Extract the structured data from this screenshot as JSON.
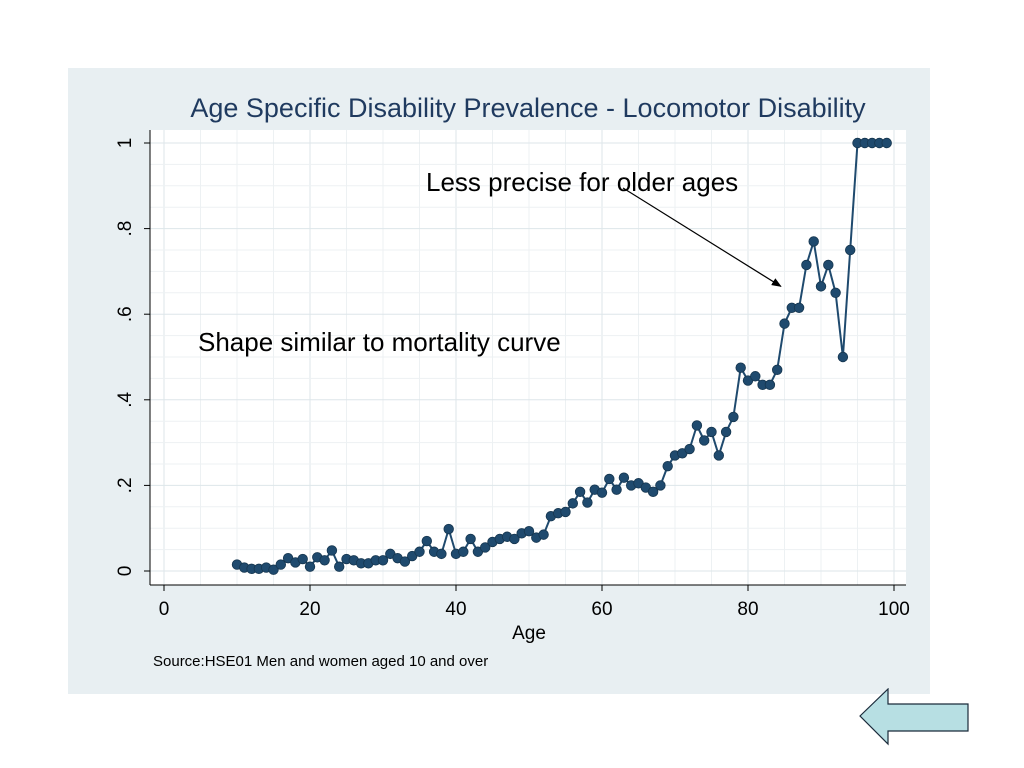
{
  "chart_data": {
    "type": "scatter",
    "connected": true,
    "title": "Age Specific Disability Prevalence - Locomotor Disability",
    "xlabel": "Age",
    "ylabel": "",
    "xlim": [
      0,
      100
    ],
    "ylim": [
      0,
      1
    ],
    "xticks": [
      0,
      20,
      40,
      60,
      80,
      100
    ],
    "yticks": [
      0,
      0.2,
      0.4,
      0.6,
      0.8,
      1
    ],
    "xtick_labels": [
      "0",
      "20",
      "40",
      "60",
      "80",
      "100"
    ],
    "ytick_labels": [
      "0",
      ".2",
      ".4",
      ".6",
      ".8",
      "1"
    ],
    "grid": true,
    "series": [
      {
        "color": "#1f4a6e",
        "points": [
          [
            10,
            0.015
          ],
          [
            11,
            0.008
          ],
          [
            12,
            0.005
          ],
          [
            13,
            0.005
          ],
          [
            14,
            0.008
          ],
          [
            15,
            0.003
          ],
          [
            16,
            0.015
          ],
          [
            17,
            0.03
          ],
          [
            18,
            0.02
          ],
          [
            19,
            0.028
          ],
          [
            20,
            0.01
          ],
          [
            21,
            0.032
          ],
          [
            22,
            0.025
          ],
          [
            23,
            0.048
          ],
          [
            24,
            0.01
          ],
          [
            25,
            0.028
          ],
          [
            26,
            0.025
          ],
          [
            27,
            0.018
          ],
          [
            28,
            0.018
          ],
          [
            29,
            0.025
          ],
          [
            30,
            0.025
          ],
          [
            31,
            0.04
          ],
          [
            32,
            0.03
          ],
          [
            33,
            0.022
          ],
          [
            34,
            0.035
          ],
          [
            35,
            0.045
          ],
          [
            36,
            0.07
          ],
          [
            37,
            0.045
          ],
          [
            38,
            0.04
          ],
          [
            39,
            0.098
          ],
          [
            40,
            0.04
          ],
          [
            41,
            0.045
          ],
          [
            42,
            0.075
          ],
          [
            43,
            0.045
          ],
          [
            44,
            0.055
          ],
          [
            45,
            0.068
          ],
          [
            46,
            0.075
          ],
          [
            47,
            0.08
          ],
          [
            48,
            0.075
          ],
          [
            49,
            0.088
          ],
          [
            50,
            0.093
          ],
          [
            51,
            0.078
          ],
          [
            52,
            0.085
          ],
          [
            53,
            0.128
          ],
          [
            54,
            0.135
          ],
          [
            55,
            0.138
          ],
          [
            56,
            0.158
          ],
          [
            57,
            0.185
          ],
          [
            58,
            0.16
          ],
          [
            59,
            0.19
          ],
          [
            60,
            0.183
          ],
          [
            61,
            0.215
          ],
          [
            62,
            0.19
          ],
          [
            63,
            0.218
          ],
          [
            64,
            0.2
          ],
          [
            65,
            0.205
          ],
          [
            66,
            0.195
          ],
          [
            67,
            0.185
          ],
          [
            68,
            0.2
          ],
          [
            69,
            0.245
          ],
          [
            70,
            0.27
          ],
          [
            71,
            0.275
          ],
          [
            72,
            0.285
          ],
          [
            73,
            0.34
          ],
          [
            74,
            0.305
          ],
          [
            75,
            0.325
          ],
          [
            76,
            0.27
          ],
          [
            77,
            0.325
          ],
          [
            78,
            0.36
          ],
          [
            79,
            0.475
          ],
          [
            80,
            0.445
          ],
          [
            81,
            0.455
          ],
          [
            82,
            0.435
          ],
          [
            83,
            0.435
          ],
          [
            84,
            0.47
          ],
          [
            85,
            0.578
          ],
          [
            86,
            0.615
          ],
          [
            87,
            0.615
          ],
          [
            88,
            0.715
          ],
          [
            89,
            0.77
          ],
          [
            90,
            0.665
          ],
          [
            91,
            0.715
          ],
          [
            92,
            0.65
          ],
          [
            93,
            0.5
          ],
          [
            94,
            0.75
          ],
          [
            95,
            1.0
          ],
          [
            96,
            1.0
          ],
          [
            97,
            1.0
          ],
          [
            98,
            1.0
          ],
          [
            99,
            1.0
          ]
        ]
      }
    ],
    "annotations": [
      {
        "text": "Less precise for older ages",
        "arrow_to": [
          84.5,
          0.665
        ]
      },
      {
        "text": "Shape similar to mortality curve"
      }
    ],
    "note": "Source:HSE01 Men and women aged 10 and over"
  },
  "nav": {
    "back_icon": "left-arrow-icon",
    "back_color": "#b7dfe3"
  }
}
